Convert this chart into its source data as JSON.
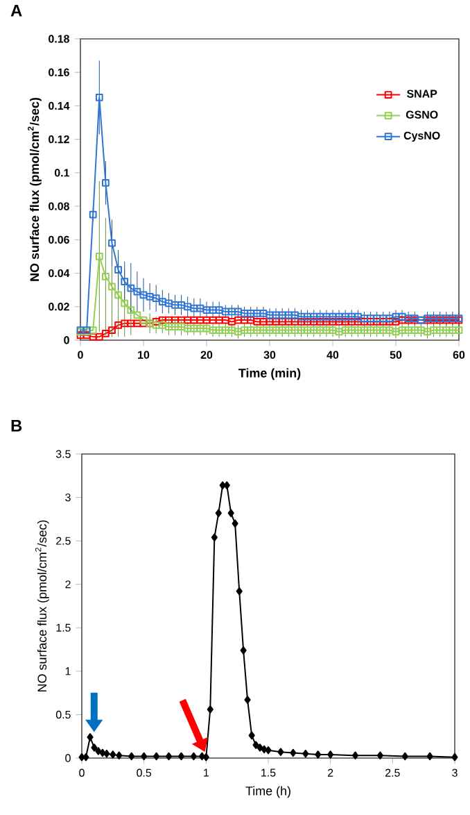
{
  "chart_data": [
    {
      "type": "line",
      "title": "A",
      "xlabel": "Time (min)",
      "ylabel": "NO surface flux (pmol/cm$^{2}$/sec)",
      "xlim": [
        0,
        60
      ],
      "xticks": [
        0,
        10,
        20,
        30,
        40,
        50,
        60
      ],
      "ylim": [
        0,
        0.18
      ],
      "yticks": [
        0,
        0.02,
        0.04,
        0.06,
        0.08,
        0.1,
        0.12,
        0.14,
        0.16,
        0.18
      ],
      "legend": "top right",
      "marker": "square",
      "x": [
        0,
        1,
        2,
        3,
        4,
        5,
        6,
        7,
        8,
        9,
        10,
        11,
        12,
        13,
        14,
        15,
        16,
        17,
        18,
        19,
        20,
        21,
        22,
        23,
        24,
        25,
        26,
        27,
        28,
        29,
        30,
        31,
        32,
        33,
        34,
        35,
        36,
        37,
        38,
        39,
        40,
        41,
        42,
        43,
        44,
        45,
        46,
        47,
        48,
        49,
        50,
        51,
        52,
        53,
        54,
        55,
        56,
        57,
        58,
        59,
        60
      ],
      "series": [
        {
          "name": "SNAP",
          "color": "#ff0000",
          "values": [
            0.003,
            0.003,
            0.002,
            0.002,
            0.004,
            0.006,
            0.009,
            0.01,
            0.01,
            0.01,
            0.01,
            0.01,
            0.011,
            0.012,
            0.012,
            0.012,
            0.012,
            0.012,
            0.012,
            0.012,
            0.012,
            0.012,
            0.012,
            0.012,
            0.011,
            0.012,
            0.012,
            0.012,
            0.011,
            0.011,
            0.011,
            0.011,
            0.011,
            0.011,
            0.011,
            0.011,
            0.011,
            0.011,
            0.011,
            0.011,
            0.011,
            0.011,
            0.011,
            0.011,
            0.011,
            0.011,
            0.011,
            0.011,
            0.011,
            0.011,
            0.011,
            0.012,
            0.012,
            0.012,
            0.012,
            0.012,
            0.012,
            0.012,
            0.012,
            0.012,
            0.012
          ]
        },
        {
          "name": "GSNO",
          "color": "#92d050",
          "values": [
            0.005,
            0.005,
            0.006,
            0.05,
            0.038,
            0.032,
            0.027,
            0.022,
            0.018,
            0.015,
            0.012,
            0.01,
            0.009,
            0.009,
            0.008,
            0.008,
            0.008,
            0.007,
            0.007,
            0.007,
            0.007,
            0.006,
            0.006,
            0.006,
            0.006,
            0.005,
            0.006,
            0.006,
            0.006,
            0.006,
            0.006,
            0.006,
            0.006,
            0.006,
            0.006,
            0.006,
            0.006,
            0.006,
            0.006,
            0.006,
            0.006,
            0.005,
            0.006,
            0.006,
            0.006,
            0.006,
            0.006,
            0.006,
            0.006,
            0.006,
            0.005,
            0.006,
            0.006,
            0.006,
            0.006,
            0.005,
            0.006,
            0.006,
            0.006,
            0.006,
            0.006
          ],
          "errors": [
            null,
            null,
            null,
            0.045,
            0.035,
            0.03,
            0.025,
            0.02,
            0.015,
            null,
            null,
            0.006,
            0.005,
            0.005,
            0.005,
            0.005,
            0.005,
            0.004,
            0.004,
            0.004,
            0.004,
            0.004,
            0.004,
            0.004,
            0.004,
            0.004,
            0.004,
            0.004,
            0.004,
            0.004,
            0.004,
            0.004,
            0.004,
            0.004,
            0.004,
            0.004,
            0.004,
            0.004,
            0.004,
            0.004,
            0.004,
            0.004,
            0.004,
            0.004,
            0.004,
            0.004,
            0.004,
            0.004,
            0.004,
            0.004,
            0.004,
            0.004,
            0.004,
            0.004,
            0.004,
            0.004,
            0.004,
            0.004,
            0.004,
            0.004,
            0.004
          ]
        },
        {
          "name": "CysNO",
          "color": "#2e75d6",
          "values": [
            0.006,
            0.006,
            0.075,
            0.145,
            0.094,
            0.058,
            0.042,
            0.035,
            0.031,
            0.029,
            0.027,
            0.026,
            0.025,
            0.023,
            0.022,
            0.021,
            0.021,
            0.02,
            0.019,
            0.019,
            0.018,
            0.018,
            0.018,
            0.017,
            0.017,
            0.017,
            0.016,
            0.016,
            0.016,
            0.016,
            0.015,
            0.015,
            0.015,
            0.015,
            0.015,
            0.014,
            0.014,
            0.014,
            0.014,
            0.014,
            0.014,
            0.014,
            0.014,
            0.014,
            0.014,
            0.013,
            0.013,
            0.013,
            0.013,
            0.013,
            0.014,
            0.014,
            0.013,
            0.013,
            0.012,
            0.013,
            0.013,
            0.013,
            0.013,
            0.013,
            0.013
          ],
          "errors": [
            null,
            null,
            0.004,
            0.022,
            0.013,
            0.014,
            0.012,
            0.012,
            0.015,
            0.012,
            0.01,
            0.008,
            0.008,
            0.007,
            0.006,
            0.006,
            0.006,
            0.006,
            0.006,
            0.006,
            0.005,
            0.005,
            0.005,
            0.004,
            0.004,
            0.004,
            0.004,
            0.004,
            0.004,
            0.004,
            0.004,
            0.004,
            0.004,
            0.004,
            0.004,
            0.004,
            0.004,
            0.004,
            0.004,
            0.004,
            0.004,
            0.004,
            0.004,
            0.004,
            0.004,
            0.004,
            0.004,
            0.004,
            0.004,
            0.004,
            0.004,
            0.004,
            0.004,
            0.004,
            null,
            0.004,
            0.004,
            0.004,
            0.004,
            0.004,
            0.004
          ]
        }
      ]
    },
    {
      "type": "line",
      "title": "B",
      "xlabel": "Time (h)",
      "ylabel": "NO surface flux (pmol/cm$^{2}$/sec)",
      "xlim": [
        0,
        3
      ],
      "xticks": [
        0,
        0.5,
        1,
        1.5,
        2,
        2.5,
        3
      ],
      "ylim": [
        0,
        3.5
      ],
      "yticks": [
        0,
        0.5,
        1,
        1.5,
        2,
        2.5,
        3,
        3.5
      ],
      "marker": "diamond",
      "x": [
        0,
        0.033,
        0.067,
        0.1,
        0.133,
        0.167,
        0.2,
        0.25,
        0.3,
        0.4,
        0.5,
        0.6,
        0.7,
        0.8,
        0.9,
        0.967,
        1.0,
        1.033,
        1.067,
        1.1,
        1.133,
        1.167,
        1.2,
        1.233,
        1.267,
        1.3,
        1.333,
        1.367,
        1.4,
        1.433,
        1.467,
        1.5,
        1.6,
        1.7,
        1.8,
        1.9,
        2.0,
        2.2,
        2.4,
        2.6,
        2.8,
        3.0
      ],
      "series": [
        {
          "color": "#000000",
          "values": [
            0.01,
            0.01,
            0.24,
            0.12,
            0.08,
            0.06,
            0.05,
            0.04,
            0.03,
            0.02,
            0.02,
            0.02,
            0.02,
            0.02,
            0.02,
            0.02,
            0.01,
            0.56,
            2.54,
            2.82,
            3.14,
            3.14,
            2.82,
            2.7,
            1.92,
            1.24,
            0.67,
            0.26,
            0.15,
            0.12,
            0.1,
            0.09,
            0.07,
            0.06,
            0.05,
            0.04,
            0.04,
            0.03,
            0.03,
            0.02,
            0.02,
            0.01
          ]
        }
      ]
    }
  ]
}
